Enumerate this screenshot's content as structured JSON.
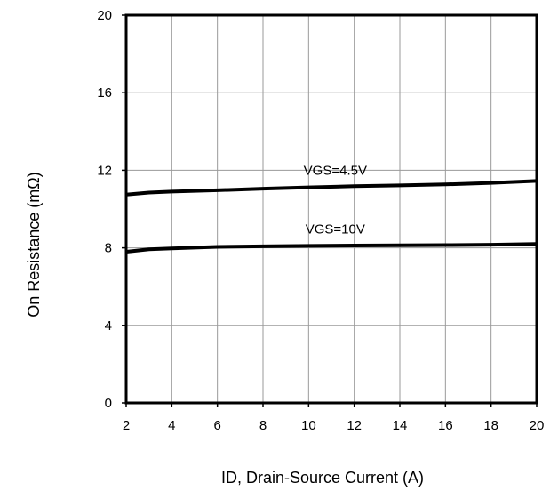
{
  "chart_data": {
    "type": "line",
    "title": "",
    "xlabel": "ID, Drain-Source Current (A)",
    "ylabel": "On Resistance (mΩ)",
    "xlim": [
      2,
      20
    ],
    "ylim": [
      0,
      20
    ],
    "x_ticks": [
      "2",
      "4",
      "6",
      "8",
      "10",
      "12",
      "14",
      "16",
      "18",
      "20"
    ],
    "y_ticks": [
      "0",
      "4",
      "8",
      "12",
      "16",
      "20"
    ],
    "grid": true,
    "line_color": "#000000",
    "series": [
      {
        "name": "VGS=4.5V",
        "x": [
          2,
          3,
          4,
          6,
          8,
          10,
          12,
          14,
          16,
          18,
          20
        ],
        "y": [
          10.75,
          10.85,
          10.9,
          10.97,
          11.05,
          11.12,
          11.18,
          11.22,
          11.27,
          11.35,
          11.45
        ]
      },
      {
        "name": "VGS=10V",
        "x": [
          2,
          3,
          4,
          6,
          8,
          10,
          12,
          14,
          16,
          18,
          20
        ],
        "y": [
          7.8,
          7.92,
          7.97,
          8.05,
          8.08,
          8.1,
          8.12,
          8.13,
          8.14,
          8.16,
          8.2
        ]
      }
    ]
  }
}
